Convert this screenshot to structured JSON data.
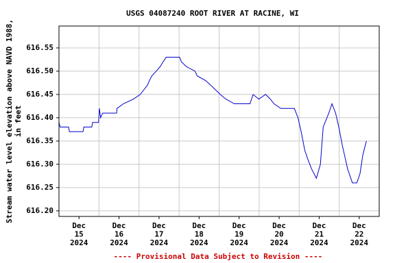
{
  "chart_data": {
    "type": "line",
    "title": "USGS 04087240 ROOT RIVER AT RACINE, WI",
    "y_label": "Stream water level elevation above NAVD 1988, in feet",
    "footnote": "---- Provisional Data Subject to Revision ----",
    "x": [
      15.0,
      15.03,
      15.24,
      15.26,
      15.6,
      15.62,
      15.82,
      15.84,
      15.99,
      16.01,
      16.04,
      16.09,
      16.44,
      16.45,
      16.61,
      16.86,
      17.03,
      17.12,
      17.21,
      17.26,
      17.32,
      17.43,
      17.53,
      17.6,
      17.68,
      18.01,
      18.06,
      18.18,
      18.4,
      18.45,
      18.66,
      18.79,
      18.91,
      19.03,
      19.17,
      19.38,
      19.77,
      19.85,
      19.99,
      20.16,
      20.28,
      20.37,
      20.54,
      20.88,
      20.97,
      21.05,
      21.14,
      21.22,
      21.31,
      21.43,
      21.53,
      21.6,
      21.74,
      21.82,
      21.91,
      21.99,
      22.08,
      22.21,
      22.33,
      22.44,
      22.52,
      22.59,
      22.68
    ],
    "series": [
      {
        "color": "#0000cc",
        "values": [
          616.39,
          616.38,
          616.38,
          616.37,
          616.37,
          616.38,
          616.38,
          616.39,
          616.39,
          616.42,
          616.4,
          616.41,
          616.41,
          616.42,
          616.43,
          616.44,
          616.45,
          616.46,
          616.47,
          616.48,
          616.49,
          616.5,
          616.51,
          616.52,
          616.53,
          616.53,
          616.52,
          616.51,
          616.5,
          616.49,
          616.48,
          616.47,
          616.46,
          616.45,
          616.44,
          616.43,
          616.43,
          616.45,
          616.44,
          616.45,
          616.44,
          616.43,
          616.42,
          616.42,
          616.4,
          616.37,
          616.33,
          616.31,
          616.29,
          616.27,
          616.3,
          616.38,
          616.41,
          616.43,
          616.41,
          616.38,
          616.34,
          616.29,
          616.26,
          616.26,
          616.28,
          616.32,
          616.35
        ]
      }
    ],
    "xlim": [
      15,
      23
    ],
    "xticks": [
      {
        "value": 15.5,
        "label": "Dec\n15\n2024"
      },
      {
        "value": 16.5,
        "label": "Dec\n16\n2024"
      },
      {
        "value": 17.5,
        "label": "Dec\n17\n2024"
      },
      {
        "value": 18.5,
        "label": "Dec\n18\n2024"
      },
      {
        "value": 19.5,
        "label": "Dec\n19\n2024"
      },
      {
        "value": 20.5,
        "label": "Dec\n20\n2024"
      },
      {
        "value": 21.5,
        "label": "Dec\n21\n2024"
      },
      {
        "value": 22.5,
        "label": "Dec\n22\n2024"
      }
    ],
    "x_grid_lines": [
      16,
      17,
      18,
      19,
      20,
      21,
      22
    ],
    "ylim": [
      616.188,
      616.597
    ],
    "yticks": [
      {
        "value": 616.2,
        "label": "616.20"
      },
      616.25,
      {
        "value": 616.3,
        "label": "616.30"
      },
      616.35,
      {
        "value": 616.4,
        "label": "616.40"
      },
      616.45,
      {
        "value": 616.5,
        "label": "616.50"
      },
      616.55
    ],
    "grid": true
  }
}
